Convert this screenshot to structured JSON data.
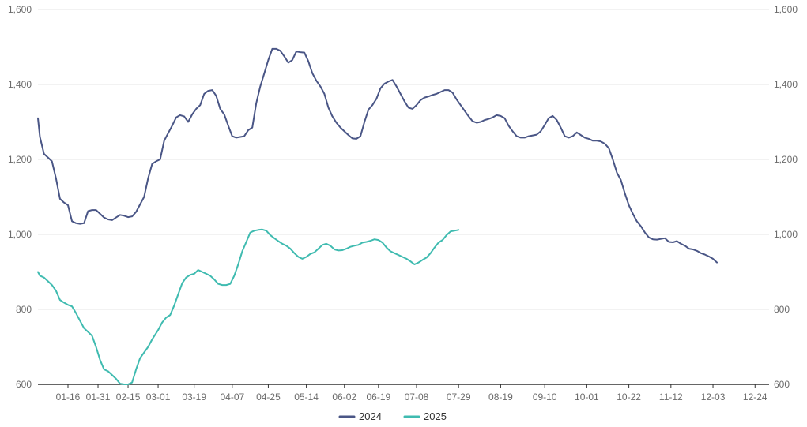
{
  "chart_data": {
    "type": "line",
    "title": "",
    "xlabel": "",
    "ylabel": "",
    "ylim": [
      600,
      1600
    ],
    "yticks": [
      "600",
      "800",
      "1,000",
      "1,200",
      "1,400",
      "1,600"
    ],
    "xticks": [
      "01-16",
      "01-31",
      "02-15",
      "03-01",
      "03-19",
      "04-07",
      "04-25",
      "05-14",
      "06-02",
      "06-19",
      "07-08",
      "07-29",
      "08-19",
      "09-10",
      "10-01",
      "10-22",
      "11-12",
      "12-03",
      "12-24"
    ],
    "grid": "horizontal",
    "dual_y_axis": true,
    "legend": "bottom-center",
    "x_day_range": [
      1,
      366
    ],
    "series": [
      {
        "name": "2024",
        "color": "#4a5686",
        "points": [
          [
            "01-01",
            1310
          ],
          [
            "01-02",
            1260
          ],
          [
            "01-04",
            1215
          ],
          [
            "01-06",
            1205
          ],
          [
            "01-08",
            1195
          ],
          [
            "01-10",
            1150
          ],
          [
            "01-12",
            1095
          ],
          [
            "01-14",
            1085
          ],
          [
            "01-16",
            1078
          ],
          [
            "01-18",
            1035
          ],
          [
            "01-20",
            1030
          ],
          [
            "01-22",
            1028
          ],
          [
            "01-24",
            1030
          ],
          [
            "01-26",
            1062
          ],
          [
            "01-28",
            1065
          ],
          [
            "01-30",
            1065
          ],
          [
            "02-01",
            1055
          ],
          [
            "02-03",
            1045
          ],
          [
            "02-05",
            1040
          ],
          [
            "02-07",
            1038
          ],
          [
            "02-09",
            1045
          ],
          [
            "02-11",
            1052
          ],
          [
            "02-13",
            1050
          ],
          [
            "02-15",
            1046
          ],
          [
            "02-17",
            1048
          ],
          [
            "02-19",
            1060
          ],
          [
            "02-21",
            1080
          ],
          [
            "02-23",
            1100
          ],
          [
            "02-25",
            1150
          ],
          [
            "02-27",
            1188
          ],
          [
            "02-29",
            1195
          ],
          [
            "03-02",
            1200
          ],
          [
            "03-04",
            1250
          ],
          [
            "03-06",
            1270
          ],
          [
            "03-08",
            1290
          ],
          [
            "03-10",
            1312
          ],
          [
            "03-12",
            1318
          ],
          [
            "03-14",
            1315
          ],
          [
            "03-16",
            1300
          ],
          [
            "03-18",
            1320
          ],
          [
            "03-20",
            1335
          ],
          [
            "03-22",
            1345
          ],
          [
            "03-24",
            1375
          ],
          [
            "03-26",
            1383
          ],
          [
            "03-28",
            1385
          ],
          [
            "03-30",
            1370
          ],
          [
            "04-01",
            1335
          ],
          [
            "04-03",
            1320
          ],
          [
            "04-05",
            1290
          ],
          [
            "04-07",
            1262
          ],
          [
            "04-09",
            1258
          ],
          [
            "04-11",
            1260
          ],
          [
            "04-13",
            1262
          ],
          [
            "04-15",
            1278
          ],
          [
            "04-17",
            1285
          ],
          [
            "04-19",
            1350
          ],
          [
            "04-21",
            1395
          ],
          [
            "04-23",
            1430
          ],
          [
            "04-25",
            1465
          ],
          [
            "04-27",
            1495
          ],
          [
            "04-29",
            1495
          ],
          [
            "05-01",
            1490
          ],
          [
            "05-03",
            1475
          ],
          [
            "05-05",
            1458
          ],
          [
            "05-07",
            1465
          ],
          [
            "05-09",
            1488
          ],
          [
            "05-11",
            1486
          ],
          [
            "05-13",
            1485
          ],
          [
            "05-15",
            1462
          ],
          [
            "05-17",
            1430
          ],
          [
            "05-19",
            1410
          ],
          [
            "05-21",
            1395
          ],
          [
            "05-23",
            1375
          ],
          [
            "05-25",
            1338
          ],
          [
            "05-27",
            1315
          ],
          [
            "05-29",
            1298
          ],
          [
            "05-31",
            1285
          ],
          [
            "06-02",
            1275
          ],
          [
            "06-04",
            1265
          ],
          [
            "06-06",
            1256
          ],
          [
            "06-08",
            1255
          ],
          [
            "06-10",
            1262
          ],
          [
            "06-12",
            1300
          ],
          [
            "06-14",
            1333
          ],
          [
            "06-16",
            1345
          ],
          [
            "06-18",
            1362
          ],
          [
            "06-20",
            1390
          ],
          [
            "06-22",
            1402
          ],
          [
            "06-24",
            1408
          ],
          [
            "06-26",
            1412
          ],
          [
            "06-28",
            1395
          ],
          [
            "06-30",
            1375
          ],
          [
            "07-02",
            1355
          ],
          [
            "07-04",
            1338
          ],
          [
            "07-06",
            1335
          ],
          [
            "07-08",
            1345
          ],
          [
            "07-10",
            1358
          ],
          [
            "07-12",
            1365
          ],
          [
            "07-14",
            1368
          ],
          [
            "07-16",
            1372
          ],
          [
            "07-18",
            1375
          ],
          [
            "07-20",
            1380
          ],
          [
            "07-22",
            1385
          ],
          [
            "07-24",
            1385
          ],
          [
            "07-26",
            1378
          ],
          [
            "07-28",
            1360
          ],
          [
            "07-30",
            1345
          ],
          [
            "08-01",
            1330
          ],
          [
            "08-03",
            1315
          ],
          [
            "08-05",
            1302
          ],
          [
            "08-07",
            1298
          ],
          [
            "08-09",
            1300
          ],
          [
            "08-11",
            1305
          ],
          [
            "08-13",
            1308
          ],
          [
            "08-15",
            1312
          ],
          [
            "08-17",
            1318
          ],
          [
            "08-19",
            1316
          ],
          [
            "08-21",
            1310
          ],
          [
            "08-23",
            1290
          ],
          [
            "08-25",
            1275
          ],
          [
            "08-27",
            1262
          ],
          [
            "08-29",
            1258
          ],
          [
            "08-31",
            1258
          ],
          [
            "09-02",
            1262
          ],
          [
            "09-04",
            1264
          ],
          [
            "09-06",
            1266
          ],
          [
            "09-08",
            1275
          ],
          [
            "09-10",
            1292
          ],
          [
            "09-12",
            1310
          ],
          [
            "09-14",
            1316
          ],
          [
            "09-16",
            1305
          ],
          [
            "09-18",
            1285
          ],
          [
            "09-20",
            1262
          ],
          [
            "09-22",
            1258
          ],
          [
            "09-24",
            1262
          ],
          [
            "09-26",
            1272
          ],
          [
            "09-28",
            1265
          ],
          [
            "09-30",
            1258
          ],
          [
            "10-02",
            1255
          ],
          [
            "10-04",
            1250
          ],
          [
            "10-06",
            1250
          ],
          [
            "10-08",
            1248
          ],
          [
            "10-10",
            1242
          ],
          [
            "10-12",
            1230
          ],
          [
            "10-14",
            1200
          ],
          [
            "10-16",
            1165
          ],
          [
            "10-18",
            1145
          ],
          [
            "10-20",
            1110
          ],
          [
            "10-22",
            1078
          ],
          [
            "10-24",
            1055
          ],
          [
            "10-26",
            1035
          ],
          [
            "10-28",
            1022
          ],
          [
            "10-30",
            1005
          ],
          [
            "11-01",
            992
          ],
          [
            "11-03",
            987
          ],
          [
            "11-05",
            986
          ],
          [
            "11-07",
            988
          ],
          [
            "11-09",
            990
          ],
          [
            "11-11",
            980
          ],
          [
            "11-13",
            979
          ],
          [
            "11-15",
            982
          ],
          [
            "11-17",
            975
          ],
          [
            "11-19",
            970
          ],
          [
            "11-21",
            962
          ],
          [
            "11-23",
            960
          ],
          [
            "11-25",
            956
          ],
          [
            "11-27",
            950
          ],
          [
            "11-29",
            946
          ],
          [
            "12-01",
            941
          ],
          [
            "12-03",
            935
          ],
          [
            "12-05",
            925
          ]
        ]
      },
      {
        "name": "2025",
        "color": "#3fbbb0",
        "points": [
          [
            "01-01",
            900
          ],
          [
            "01-02",
            890
          ],
          [
            "01-04",
            885
          ],
          [
            "01-06",
            875
          ],
          [
            "01-08",
            865
          ],
          [
            "01-10",
            850
          ],
          [
            "01-12",
            825
          ],
          [
            "01-14",
            818
          ],
          [
            "01-16",
            812
          ],
          [
            "01-18",
            808
          ],
          [
            "01-20",
            790
          ],
          [
            "01-22",
            770
          ],
          [
            "01-24",
            750
          ],
          [
            "01-26",
            740
          ],
          [
            "01-28",
            730
          ],
          [
            "01-30",
            700
          ],
          [
            "02-01",
            665
          ],
          [
            "02-03",
            640
          ],
          [
            "02-05",
            635
          ],
          [
            "02-07",
            625
          ],
          [
            "02-09",
            615
          ],
          [
            "02-11",
            602
          ],
          [
            "02-13",
            600
          ],
          [
            "02-15",
            600
          ],
          [
            "02-17",
            605
          ],
          [
            "02-19",
            640
          ],
          [
            "02-21",
            670
          ],
          [
            "02-23",
            685
          ],
          [
            "02-25",
            700
          ],
          [
            "02-27",
            720
          ],
          [
            "03-01",
            745
          ],
          [
            "03-03",
            765
          ],
          [
            "03-05",
            778
          ],
          [
            "03-07",
            785
          ],
          [
            "03-09",
            810
          ],
          [
            "03-11",
            840
          ],
          [
            "03-13",
            870
          ],
          [
            "03-15",
            885
          ],
          [
            "03-17",
            892
          ],
          [
            "03-19",
            895
          ],
          [
            "03-21",
            905
          ],
          [
            "03-23",
            900
          ],
          [
            "03-25",
            895
          ],
          [
            "03-27",
            890
          ],
          [
            "03-29",
            880
          ],
          [
            "03-31",
            868
          ],
          [
            "04-02",
            865
          ],
          [
            "04-04",
            865
          ],
          [
            "04-06",
            868
          ],
          [
            "04-08",
            890
          ],
          [
            "04-10",
            920
          ],
          [
            "04-12",
            955
          ],
          [
            "04-14",
            980
          ],
          [
            "04-16",
            1005
          ],
          [
            "04-18",
            1010
          ],
          [
            "04-20",
            1012
          ],
          [
            "04-22",
            1013
          ],
          [
            "04-24",
            1010
          ],
          [
            "04-26",
            998
          ],
          [
            "04-28",
            990
          ],
          [
            "04-30",
            982
          ],
          [
            "05-02",
            975
          ],
          [
            "05-04",
            970
          ],
          [
            "05-06",
            962
          ],
          [
            "05-08",
            950
          ],
          [
            "05-10",
            940
          ],
          [
            "05-12",
            935
          ],
          [
            "05-14",
            940
          ],
          [
            "05-16",
            948
          ],
          [
            "05-18",
            952
          ],
          [
            "05-20",
            962
          ],
          [
            "05-22",
            972
          ],
          [
            "05-24",
            975
          ],
          [
            "05-26",
            970
          ],
          [
            "05-28",
            960
          ],
          [
            "05-30",
            957
          ],
          [
            "06-01",
            958
          ],
          [
            "06-03",
            962
          ],
          [
            "06-05",
            967
          ],
          [
            "06-07",
            970
          ],
          [
            "06-09",
            972
          ],
          [
            "06-11",
            978
          ],
          [
            "06-13",
            980
          ],
          [
            "06-15",
            983
          ],
          [
            "06-17",
            987
          ],
          [
            "06-19",
            985
          ],
          [
            "06-21",
            978
          ],
          [
            "06-23",
            965
          ],
          [
            "06-25",
            955
          ],
          [
            "06-27",
            950
          ],
          [
            "06-29",
            945
          ],
          [
            "07-01",
            940
          ],
          [
            "07-03",
            935
          ],
          [
            "07-05",
            928
          ],
          [
            "07-07",
            920
          ],
          [
            "07-09",
            925
          ],
          [
            "07-11",
            932
          ],
          [
            "07-13",
            938
          ],
          [
            "07-15",
            950
          ],
          [
            "07-17",
            965
          ],
          [
            "07-19",
            978
          ],
          [
            "07-21",
            985
          ],
          [
            "07-23",
            998
          ],
          [
            "07-25",
            1008
          ],
          [
            "07-27",
            1010
          ],
          [
            "07-29",
            1012
          ]
        ]
      }
    ]
  }
}
